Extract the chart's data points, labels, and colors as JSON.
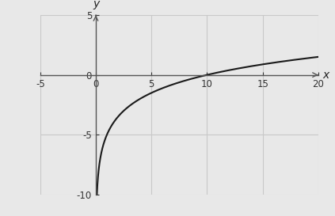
{
  "xlim": [
    -5,
    20
  ],
  "ylim": [
    -10,
    5
  ],
  "xticks": [
    -5,
    0,
    5,
    10,
    15,
    20
  ],
  "yticks": [
    -10,
    -5,
    0,
    5
  ],
  "xlabel": "x",
  "ylabel": "y",
  "x_start": 0.001,
  "x_end": 20.0,
  "func": "5 * log10(x/10)",
  "curve_color": "#1a1a1a",
  "curve_linewidth": 1.5,
  "grid_color": "#c8c8c8",
  "background_color": "#e8e8e8",
  "axis_color": "#555555",
  "tick_fontsize": 8.5,
  "label_fontsize": 10
}
